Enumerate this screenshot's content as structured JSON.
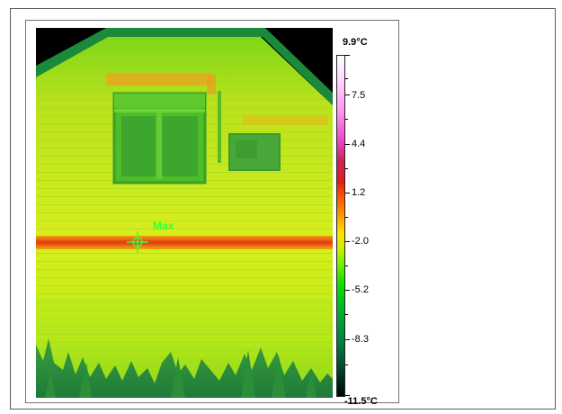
{
  "scale": {
    "max_label": "9.9°C",
    "min_label": "-11.5°C",
    "ticks": [
      "7.5",
      "4.4",
      "1.2",
      "-2.0",
      "-5.2",
      "-8.3"
    ]
  },
  "marker": {
    "label": "Max"
  },
  "colors": {
    "marker": "#38ff38",
    "hot_band": "#e03a10",
    "wall": "#d8ef20",
    "sky": "#000000"
  }
}
